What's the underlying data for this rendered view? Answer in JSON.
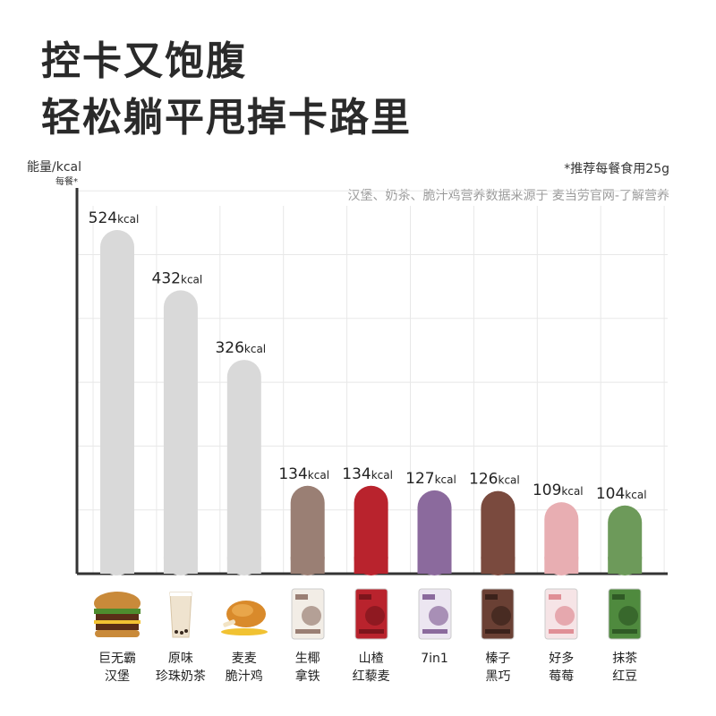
{
  "headline": {
    "line1": "控卡又饱腹",
    "line2": "轻松躺平甩掉卡路里"
  },
  "note": "*推荐每餐食用25g",
  "source": "汉堡、奶茶、脆汁鸡营养数据来源于 麦当劳官网-了解营养",
  "colors": {
    "background": "#ffffff",
    "grid": "#e8e8e8",
    "axis": "#333333",
    "text": "#222222"
  },
  "chart_data": {
    "type": "bar",
    "ylabel": "能量/kcal",
    "ylabel_sub": "每餐*",
    "unit": "kcal",
    "ylim": [
      0,
      600
    ],
    "grid": true,
    "categories": [
      [
        "巨无霸",
        "汉堡"
      ],
      [
        "原味",
        "珍珠奶茶"
      ],
      [
        "麦麦",
        "脆汁鸡"
      ],
      [
        "生椰",
        "拿铁"
      ],
      [
        "山楂",
        "红藜麦"
      ],
      [
        "7in1"
      ],
      [
        "榛子",
        "黑巧"
      ],
      [
        "好多",
        "莓莓"
      ],
      [
        "抹茶",
        "红豆"
      ]
    ],
    "values": [
      524,
      432,
      326,
      134,
      134,
      127,
      126,
      109,
      104
    ],
    "value_labels": [
      "524",
      "432",
      "326",
      "134",
      "134",
      "127",
      "126",
      "109",
      "104"
    ],
    "bar_colors": [
      "#d9d9d9",
      "#d9d9d9",
      "#d9d9d9",
      "#9a7f74",
      "#b9232d",
      "#8b6a9d",
      "#7a4a3e",
      "#e8aeb2",
      "#6d9a5a"
    ]
  },
  "products": [
    {
      "name": "burger",
      "icon": "burger-icon"
    },
    {
      "name": "milk-tea",
      "icon": "milk-tea-icon"
    },
    {
      "name": "fried-chicken",
      "icon": "fried-chicken-icon"
    },
    {
      "name": "coconut-latte-bag",
      "icon": "snack-bag-icon",
      "color": "#f2ede6",
      "accent": "#9a7f74"
    },
    {
      "name": "hawthorn-quinoa-bag",
      "icon": "snack-bag-icon",
      "color": "#b9232d",
      "accent": "#7d151c"
    },
    {
      "name": "7in1-bag",
      "icon": "snack-bag-icon",
      "color": "#ece6f1",
      "accent": "#8b6a9d"
    },
    {
      "name": "hazelnut-choco-bag",
      "icon": "snack-bag-icon",
      "color": "#6a4034",
      "accent": "#3b221b"
    },
    {
      "name": "berry-bag",
      "icon": "snack-bag-icon",
      "color": "#f6e4e6",
      "accent": "#e08f96"
    },
    {
      "name": "matcha-redbean-bag",
      "icon": "snack-bag-icon",
      "color": "#4f8a3e",
      "accent": "#2f5a25"
    }
  ]
}
